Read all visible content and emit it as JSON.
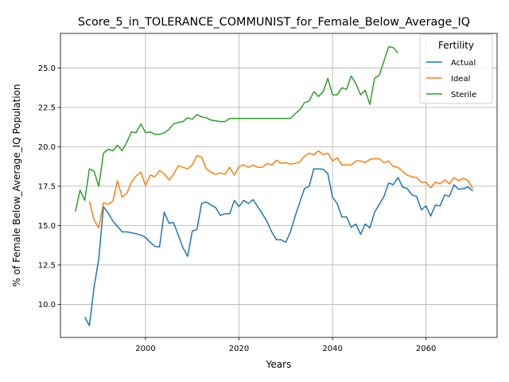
{
  "chart_data": {
    "type": "line",
    "title": "Score_5_in_TOLERANCE_COMMUNIST_for_Female_Below_Average_IQ",
    "xlabel": "Years",
    "ylabel": "% of Female Below_Average_IQ Population",
    "xlim": [
      1981.8,
      2075.2
    ],
    "ylim": [
      7.9,
      27.2
    ],
    "xticks": [
      2000,
      2020,
      2040,
      2060
    ],
    "yticks": [
      10.0,
      12.5,
      15.0,
      17.5,
      20.0,
      22.5,
      25.0
    ],
    "grid": true,
    "legend": {
      "title": "Fertility",
      "placement": "top-right"
    },
    "series": [
      {
        "name": "Actual",
        "color": "#1f77b4",
        "x": [
          1987,
          1988,
          1989,
          1990,
          1991,
          1992,
          1993,
          1994,
          1995,
          1996,
          1997,
          1998,
          1999,
          2000,
          2001,
          2002,
          2003,
          2004,
          2005,
          2006,
          2007,
          2008,
          2009,
          2010,
          2011,
          2012,
          2013,
          2014,
          2015,
          2016,
          2017,
          2018,
          2019,
          2020,
          2021,
          2022,
          2023,
          2024,
          2025,
          2026,
          2027,
          2028,
          2029,
          2030,
          2031,
          2032,
          2033,
          2034,
          2035,
          2036,
          2037,
          2038,
          2039,
          2040,
          2041,
          2042,
          2043,
          2044,
          2045,
          2046,
          2047,
          2048,
          2049,
          2050,
          2051,
          2052,
          2053,
          2054,
          2055,
          2056,
          2057,
          2058,
          2059,
          2060,
          2061,
          2062,
          2063,
          2064,
          2065,
          2066,
          2067,
          2068,
          2069,
          2070
        ],
        "values": [
          9.2,
          8.65,
          11.1,
          12.9,
          16.2,
          15.8,
          15.3,
          14.95,
          14.6,
          14.6,
          14.55,
          14.48,
          14.4,
          14.25,
          13.95,
          13.68,
          13.65,
          15.85,
          15.15,
          15.2,
          14.4,
          13.6,
          13.05,
          14.65,
          14.75,
          16.4,
          16.5,
          16.3,
          16.15,
          15.65,
          15.75,
          15.75,
          16.6,
          16.2,
          16.6,
          16.4,
          16.65,
          16.2,
          15.75,
          15.25,
          14.6,
          14.1,
          14.1,
          13.95,
          14.6,
          15.6,
          16.5,
          17.35,
          17.5,
          18.6,
          18.6,
          18.58,
          18.3,
          16.8,
          16.4,
          15.55,
          15.55,
          14.9,
          15.1,
          14.45,
          15.1,
          14.85,
          15.85,
          16.35,
          16.85,
          17.7,
          17.6,
          18.05,
          17.45,
          17.35,
          16.95,
          16.85,
          16.0,
          16.25,
          15.6,
          16.3,
          16.25,
          16.95,
          16.85,
          17.58,
          17.3,
          17.35,
          17.45,
          17.2
        ]
      },
      {
        "name": "Ideal",
        "color": "#ff7f0e",
        "x": [
          1988,
          1989,
          1990,
          1991,
          1992,
          1993,
          1994,
          1995,
          1996,
          1997,
          1998,
          1999,
          2000,
          2001,
          2002,
          2003,
          2004,
          2005,
          2006,
          2007,
          2008,
          2009,
          2010,
          2011,
          2012,
          2013,
          2014,
          2015,
          2016,
          2017,
          2018,
          2019,
          2020,
          2021,
          2022,
          2023,
          2024,
          2025,
          2026,
          2027,
          2028,
          2029,
          2030,
          2031,
          2032,
          2033,
          2034,
          2035,
          2036,
          2037,
          2038,
          2039,
          2040,
          2041,
          2042,
          2043,
          2044,
          2045,
          2046,
          2047,
          2048,
          2049,
          2050,
          2051,
          2052,
          2053,
          2054,
          2055,
          2056,
          2057,
          2058,
          2059,
          2060,
          2061,
          2062,
          2063,
          2064,
          2065,
          2066,
          2067,
          2068,
          2069,
          2070
        ],
        "values": [
          16.55,
          15.35,
          14.85,
          16.45,
          16.35,
          16.55,
          17.85,
          16.8,
          17.05,
          17.75,
          18.15,
          18.4,
          17.55,
          18.2,
          18.1,
          18.5,
          18.3,
          17.9,
          18.25,
          18.8,
          18.7,
          18.6,
          18.85,
          19.45,
          19.35,
          18.6,
          18.4,
          18.25,
          18.35,
          18.25,
          18.7,
          18.2,
          18.75,
          18.85,
          18.7,
          18.85,
          18.7,
          18.7,
          18.95,
          18.85,
          19.15,
          18.95,
          19.0,
          18.9,
          18.95,
          19.05,
          19.4,
          19.6,
          19.5,
          19.75,
          19.5,
          19.6,
          19.1,
          19.3,
          18.85,
          18.85,
          18.85,
          19.1,
          19.1,
          19.0,
          19.2,
          19.25,
          19.25,
          19.0,
          19.1,
          18.75,
          18.7,
          18.45,
          18.2,
          18.1,
          18.05,
          17.75,
          17.75,
          17.4,
          17.75,
          17.65,
          17.9,
          17.65,
          18.05,
          17.85,
          18.0,
          17.85,
          17.35
        ]
      },
      {
        "name": "Sterile",
        "color": "#2ca02c",
        "x": [
          1985,
          1986,
          1987,
          1988,
          1989,
          1990,
          1991,
          1992,
          1993,
          1994,
          1995,
          1996,
          1997,
          1998,
          1999,
          2000,
          2001,
          2002,
          2003,
          2004,
          2005,
          2006,
          2007,
          2008,
          2009,
          2010,
          2011,
          2012,
          2013,
          2014,
          2015,
          2016,
          2017,
          2018,
          2019,
          2020,
          2021,
          2022,
          2023,
          2024,
          2025,
          2026,
          2027,
          2028,
          2029,
          2030,
          2031,
          2032,
          2033,
          2034,
          2035,
          2036,
          2037,
          2038,
          2039,
          2040,
          2041,
          2042,
          2043,
          2044,
          2045,
          2046,
          2047,
          2048,
          2049,
          2050,
          2051,
          2052,
          2053,
          2054
        ],
        "values": [
          15.9,
          17.25,
          16.6,
          18.6,
          18.45,
          17.5,
          19.6,
          19.85,
          19.75,
          20.1,
          19.75,
          20.3,
          20.95,
          20.9,
          21.45,
          20.9,
          20.95,
          20.8,
          20.8,
          20.9,
          21.1,
          21.45,
          21.55,
          21.6,
          21.85,
          21.75,
          22.05,
          21.9,
          21.85,
          21.7,
          21.65,
          21.6,
          21.6,
          21.8,
          21.8,
          21.8,
          21.8,
          21.8,
          21.8,
          21.8,
          21.8,
          21.8,
          21.8,
          21.8,
          21.8,
          21.8,
          21.8,
          22.1,
          22.35,
          22.8,
          22.9,
          23.5,
          23.2,
          23.5,
          24.35,
          23.3,
          23.3,
          23.75,
          23.65,
          24.5,
          24.0,
          23.3,
          23.6,
          22.7,
          24.35,
          24.55,
          25.45,
          26.35,
          26.3,
          25.95
        ]
      }
    ]
  }
}
